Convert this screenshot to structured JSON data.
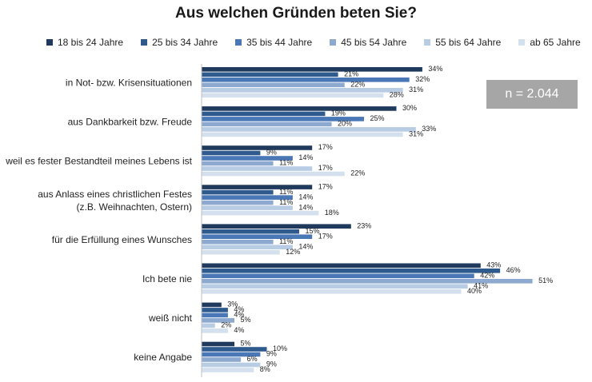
{
  "n_label": "n = 2.044",
  "chart_data": {
    "type": "bar",
    "orientation": "horizontal",
    "title": "Aus welchen Gründen beten Sie?",
    "categories": [
      [
        "in Not- bzw. Krisensituationen"
      ],
      [
        "aus Dankbarkeit bzw. Freude"
      ],
      [
        "weil es fester Bestandteil meines Lebens ist"
      ],
      [
        "aus Anlass eines christlichen Festes",
        "(z.B. Weihnachten, Ostern)"
      ],
      [
        "für die Erfüllung eines Wunsches"
      ],
      [
        "Ich bete nie"
      ],
      [
        "weiß nicht"
      ],
      [
        "keine Angabe"
      ]
    ],
    "series": [
      {
        "name": "18 bis 24 Jahre",
        "color": "#1f3a5c",
        "values": [
          34,
          30,
          17,
          17,
          23,
          43,
          3,
          5
        ]
      },
      {
        "name": "25 bis 34 Jahre",
        "color": "#2f5a8e",
        "values": [
          21,
          19,
          9,
          11,
          15,
          46,
          4,
          10
        ]
      },
      {
        "name": "35 bis 44 Jahre",
        "color": "#4a78b6",
        "values": [
          32,
          25,
          14,
          14,
          17,
          42,
          4,
          9
        ]
      },
      {
        "name": "45 bis 54 Jahre",
        "color": "#8ea9d0",
        "values": [
          22,
          20,
          11,
          11,
          11,
          51,
          5,
          6
        ]
      },
      {
        "name": "55 bis 64 Jahre",
        "color": "#b8cce4",
        "values": [
          31,
          33,
          17,
          14,
          14,
          41,
          2,
          9
        ]
      },
      {
        "name": "ab 65 Jahre",
        "color": "#d4e0ee",
        "values": [
          28,
          31,
          22,
          18,
          12,
          40,
          4,
          8
        ]
      }
    ],
    "value_suffix": "%",
    "xlim": [
      0,
      58
    ],
    "legend_position": "top",
    "grid": false
  }
}
